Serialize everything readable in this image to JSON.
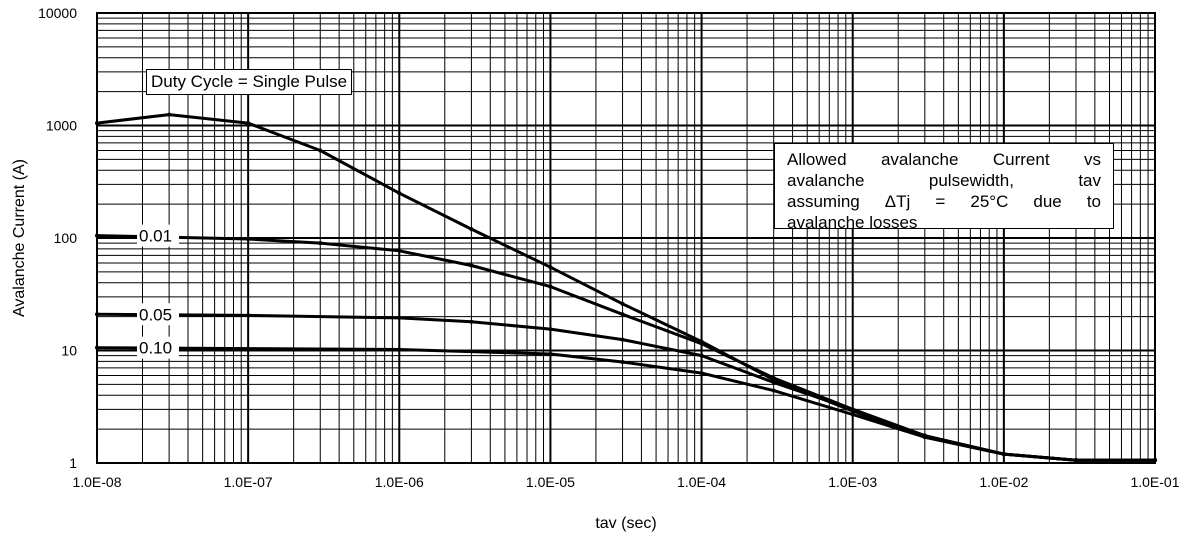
{
  "chart_data": {
    "type": "line",
    "title": "",
    "xlabel": "tav (sec)",
    "ylabel": "Avalanche Current (A)",
    "xscale": "log",
    "yscale": "log",
    "xlim": [
      1e-08,
      0.1
    ],
    "ylim": [
      1,
      10000
    ],
    "grid": true,
    "x_tick_labels": [
      "1.0E-08",
      "1.0E-07",
      "1.0E-06",
      "1.0E-05",
      "1.0E-04",
      "1.0E-03",
      "1.0E-02",
      "1.0E-01"
    ],
    "y_tick_labels": [
      "1",
      "10",
      "100",
      "1000",
      "10000"
    ],
    "series": [
      {
        "name": "Duty Cycle = Single Pulse",
        "x": [
          1e-08,
          3e-08,
          1e-07,
          3e-07,
          1e-06,
          3e-06,
          1e-05,
          3e-05,
          0.0001,
          0.0003,
          0.001,
          0.003,
          0.01,
          0.03,
          0.1
        ],
        "y": [
          1050,
          1250,
          1050,
          600,
          250,
          120,
          55,
          26,
          12,
          5.5,
          2.9,
          1.7,
          1.2,
          1.06,
          1.06
        ]
      },
      {
        "name": "0.01",
        "x": [
          1e-08,
          1e-07,
          3e-07,
          1e-06,
          3e-06,
          1e-05,
          3e-05,
          0.0001,
          0.0003,
          0.001,
          0.003,
          0.01,
          0.03,
          0.1
        ],
        "y": [
          105,
          98,
          90,
          77,
          57,
          37,
          21,
          11.5,
          5.7,
          3.0,
          1.75,
          1.2,
          1.06,
          1.06
        ]
      },
      {
        "name": "0.05",
        "x": [
          1e-08,
          1e-07,
          1e-06,
          3e-06,
          1e-05,
          3e-05,
          0.0001,
          0.0003,
          0.001,
          0.003,
          0.01,
          0.03,
          0.1
        ],
        "y": [
          21,
          20.5,
          19.5,
          18,
          15.5,
          12.5,
          9,
          5.2,
          3.0,
          1.75,
          1.2,
          1.06,
          1.06
        ]
      },
      {
        "name": "0.10",
        "x": [
          1e-08,
          1e-07,
          1e-06,
          1e-05,
          3e-05,
          0.0001,
          0.0003,
          0.001,
          0.003,
          0.01,
          0.03,
          0.1
        ],
        "y": [
          10.6,
          10.4,
          10.2,
          9.3,
          7.9,
          6.3,
          4.4,
          2.7,
          1.7,
          1.2,
          1.06,
          1.06
        ]
      }
    ],
    "series_labels": [
      "0.01",
      "0.05",
      "0.10"
    ],
    "annotation_box": {
      "lines": [
        "Allowed avalanche Current vs",
        "avalanche pulsewidth, tav",
        "assuming ΔTj = 25°C due to",
        "avalanche losses"
      ]
    },
    "duty_label": "Duty Cycle = Single Pulse"
  }
}
